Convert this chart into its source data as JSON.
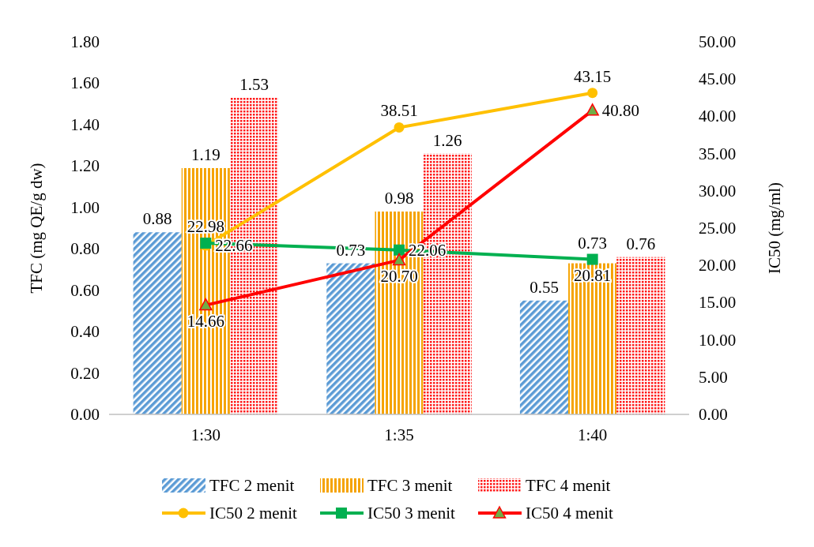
{
  "chart_data": {
    "type": "bar",
    "categories": [
      "1:30",
      "1:35",
      "1:40"
    ],
    "ylabel": "TFC (mg QE/g dw)",
    "y2label": "IC50 (mg/ml)",
    "ylim": [
      0,
      1.8
    ],
    "yticks": [
      {
        "value": 0,
        "label": "0.00"
      },
      {
        "value": 0.2,
        "label": "0.20"
      },
      {
        "value": 0.4,
        "label": "0.40"
      },
      {
        "value": 0.6,
        "label": "0.60"
      },
      {
        "value": 0.8,
        "label": "0.80"
      },
      {
        "value": 1.0,
        "label": "1.00"
      },
      {
        "value": 1.2,
        "label": "1.20"
      },
      {
        "value": 1.4,
        "label": "1.40"
      },
      {
        "value": 1.6,
        "label": "1.60"
      },
      {
        "value": 1.8,
        "label": "1.80"
      }
    ],
    "y2lim": [
      0,
      50
    ],
    "y2ticks": [
      {
        "value": 0,
        "label": "0.00"
      },
      {
        "value": 5,
        "label": "5.00"
      },
      {
        "value": 10,
        "label": "10.00"
      },
      {
        "value": 15,
        "label": "15.00"
      },
      {
        "value": 20,
        "label": "20.00"
      },
      {
        "value": 25,
        "label": "25.00"
      },
      {
        "value": 30,
        "label": "30.00"
      },
      {
        "value": 35,
        "label": "35.00"
      },
      {
        "value": 40,
        "label": "40.00"
      },
      {
        "value": 45,
        "label": "45.00"
      },
      {
        "value": 50,
        "label": "50.00"
      }
    ],
    "legend": "bottom",
    "series": [
      {
        "name": "TFC 2 menit",
        "color": "#5b9bd5",
        "values": [
          0.88,
          0.73,
          0.55
        ],
        "value_labels": [
          "0.88",
          "0.73",
          "0.55"
        ]
      },
      {
        "name": "TFC 3 menit",
        "color": "#f5a300",
        "values": [
          1.19,
          0.98,
          0.73
        ],
        "value_labels": [
          "1.19",
          "0.98",
          "0.73"
        ]
      },
      {
        "name": "TFC 4 menit",
        "color": "#ff1a1a",
        "values": [
          1.53,
          1.26,
          0.76
        ],
        "value_labels": [
          "1.53",
          "1.26",
          "0.76"
        ]
      },
      {
        "name": "IC50 2 menit",
        "type": "line",
        "axis": "y2",
        "marker": "circle",
        "color": "#ffc000",
        "values": [
          22.66,
          38.51,
          43.15
        ],
        "value_labels": [
          "22.66",
          "38.51",
          "43.15"
        ]
      },
      {
        "name": "IC50 3 menit",
        "type": "line",
        "axis": "y2",
        "marker": "square",
        "color": "#00b050",
        "values": [
          22.98,
          22.06,
          20.81
        ],
        "value_labels": [
          "22.98",
          "22.06",
          "20.81"
        ]
      },
      {
        "name": "IC50 4 menit",
        "type": "line",
        "axis": "y2",
        "marker": "triangle",
        "color": "#ff0000",
        "values": [
          14.66,
          20.7,
          40.8
        ],
        "value_labels": [
          "14.66",
          "20.70",
          "40.80"
        ]
      }
    ]
  }
}
